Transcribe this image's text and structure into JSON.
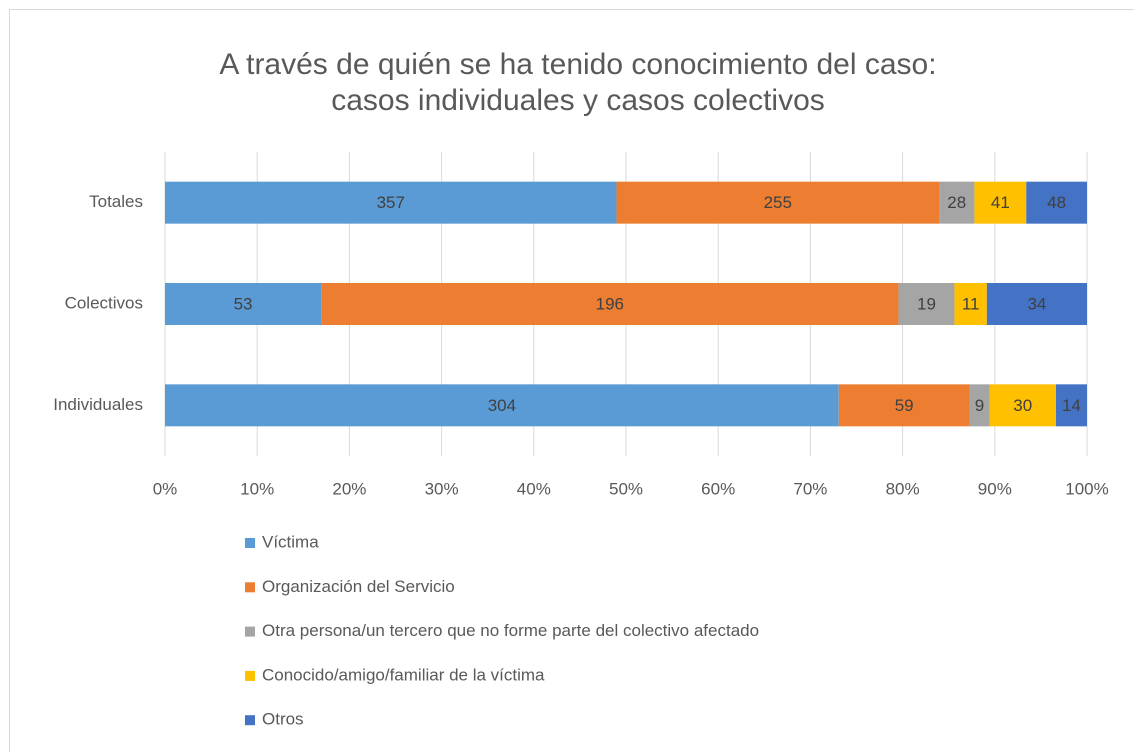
{
  "chart_data": {
    "type": "bar",
    "orientation": "horizontal",
    "stacked": "percent",
    "title": [
      "A través de quién se ha tenido conocimiento del caso:",
      "casos individuales y casos colectivos"
    ],
    "categories": [
      "Totales",
      "Colectivos",
      "Individuales"
    ],
    "series": [
      {
        "name": "Víctima",
        "color": "#5b9bd5",
        "values": [
          357,
          53,
          304
        ]
      },
      {
        "name": "Organización del Servicio",
        "color": "#ed7d31",
        "values": [
          255,
          196,
          59
        ]
      },
      {
        "name": "Otra persona/un tercero que no forme parte del colectivo afectado",
        "color": "#a5a5a5",
        "values": [
          28,
          19,
          9
        ]
      },
      {
        "name": "Conocido/amigo/familiar de la víctima",
        "color": "#ffc000",
        "values": [
          41,
          11,
          30
        ]
      },
      {
        "name": "Otros",
        "color": "#4472c4",
        "values": [
          48,
          34,
          14
        ]
      }
    ],
    "xlim": [
      0,
      100
    ],
    "xticks": [
      {
        "value": 0,
        "label": "0%"
      },
      {
        "value": 10,
        "label": "10%"
      },
      {
        "value": 20,
        "label": "20%"
      },
      {
        "value": 30,
        "label": "30%"
      },
      {
        "value": 40,
        "label": "40%"
      },
      {
        "value": 50,
        "label": "50%"
      },
      {
        "value": 60,
        "label": "60%"
      },
      {
        "value": 70,
        "label": "70%"
      },
      {
        "value": 80,
        "label": "80%"
      },
      {
        "value": 90,
        "label": "90%"
      },
      {
        "value": 100,
        "label": "100%"
      }
    ],
    "grid": true,
    "legend": "bottom"
  }
}
